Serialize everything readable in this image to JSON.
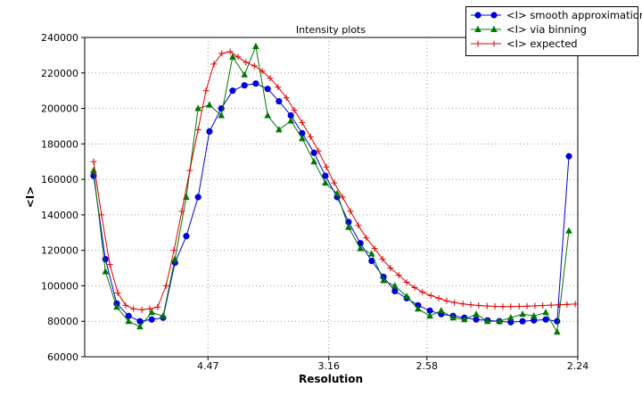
{
  "chart_data": {
    "type": "line",
    "title": "Intensity plots",
    "xlabel": "Resolution",
    "ylabel": "<I>",
    "ylim": [
      60000,
      240000
    ],
    "yticks": [
      60000,
      80000,
      100000,
      120000,
      140000,
      160000,
      180000,
      200000,
      220000,
      240000
    ],
    "xticks": [
      {
        "t": 0.25,
        "label": "4.47"
      },
      {
        "t": 0.495,
        "label": "3.16"
      },
      {
        "t": 0.694,
        "label": "2.58"
      },
      {
        "t": 1.0,
        "label": "2.24"
      }
    ],
    "layout": {
      "grid": true,
      "grid_style": "dotted",
      "legend_position": "upper right"
    },
    "series": [
      {
        "name": "<I> smooth approximation",
        "color": "#0000dd",
        "marker": "circle",
        "x": [
          0.018,
          0.042,
          0.065,
          0.089,
          0.112,
          0.136,
          0.159,
          0.183,
          0.206,
          0.23,
          0.253,
          0.277,
          0.3,
          0.324,
          0.347,
          0.371,
          0.394,
          0.418,
          0.441,
          0.465,
          0.488,
          0.512,
          0.535,
          0.559,
          0.582,
          0.606,
          0.629,
          0.653,
          0.676,
          0.7,
          0.723,
          0.747,
          0.77,
          0.794,
          0.817,
          0.841,
          0.864,
          0.888,
          0.911,
          0.935,
          0.958,
          0.982
        ],
        "y": [
          162000,
          115000,
          90000,
          83000,
          80000,
          81000,
          82000,
          113000,
          128000,
          150000,
          187000,
          200000,
          210000,
          213000,
          214000,
          211000,
          204000,
          196000,
          186000,
          175000,
          162000,
          150000,
          136000,
          124000,
          114000,
          105000,
          97000,
          93000,
          89000,
          86000,
          84000,
          83000,
          82000,
          81000,
          80500,
          80000,
          79500,
          80000,
          80500,
          81000,
          80000,
          173000
        ]
      },
      {
        "name": "<I> via binning",
        "color": "#007700",
        "marker": "triangle",
        "x": [
          0.018,
          0.042,
          0.065,
          0.089,
          0.112,
          0.136,
          0.159,
          0.183,
          0.206,
          0.23,
          0.253,
          0.277,
          0.3,
          0.324,
          0.347,
          0.371,
          0.394,
          0.418,
          0.441,
          0.465,
          0.488,
          0.512,
          0.535,
          0.559,
          0.582,
          0.606,
          0.629,
          0.653,
          0.676,
          0.7,
          0.723,
          0.747,
          0.77,
          0.794,
          0.817,
          0.841,
          0.864,
          0.888,
          0.911,
          0.935,
          0.958,
          0.982
        ],
        "y": [
          165000,
          108000,
          88000,
          80000,
          77000,
          85000,
          83000,
          115000,
          150000,
          200000,
          202000,
          196000,
          229000,
          219000,
          235000,
          196000,
          188000,
          193000,
          183000,
          170000,
          158000,
          152000,
          133000,
          121000,
          118000,
          103000,
          100000,
          94000,
          87000,
          83000,
          86000,
          82000,
          81000,
          84000,
          80000,
          80000,
          82000,
          84000,
          83000,
          85000,
          74000,
          131000
        ]
      },
      {
        "name": "<I> expected",
        "color": "#dd0000",
        "marker": "plus",
        "x": [
          0.018,
          0.034,
          0.051,
          0.067,
          0.083,
          0.099,
          0.116,
          0.132,
          0.148,
          0.165,
          0.181,
          0.197,
          0.213,
          0.23,
          0.246,
          0.262,
          0.278,
          0.295,
          0.311,
          0.327,
          0.344,
          0.36,
          0.376,
          0.392,
          0.409,
          0.425,
          0.441,
          0.458,
          0.474,
          0.49,
          0.506,
          0.523,
          0.539,
          0.555,
          0.571,
          0.588,
          0.604,
          0.62,
          0.637,
          0.653,
          0.669,
          0.685,
          0.702,
          0.718,
          0.734,
          0.75,
          0.767,
          0.783,
          0.799,
          0.816,
          0.832,
          0.848,
          0.864,
          0.881,
          0.897,
          0.913,
          0.929,
          0.946,
          0.962,
          0.978,
          0.995
        ],
        "y": [
          170000,
          140000,
          112000,
          96000,
          89000,
          87000,
          86500,
          87000,
          88000,
          100000,
          120000,
          142000,
          165000,
          188000,
          210000,
          225000,
          231000,
          232000,
          229000,
          226000,
          224000,
          221000,
          217000,
          212000,
          206000,
          199000,
          192000,
          184000,
          176000,
          167000,
          158000,
          150000,
          142000,
          134000,
          127000,
          121000,
          115000,
          110000,
          106000,
          102000,
          99000,
          96500,
          94500,
          93000,
          91500,
          90500,
          89800,
          89300,
          88900,
          88600,
          88400,
          88300,
          88300,
          88400,
          88500,
          88700,
          88900,
          89100,
          89300,
          89500,
          89700
        ]
      }
    ]
  }
}
